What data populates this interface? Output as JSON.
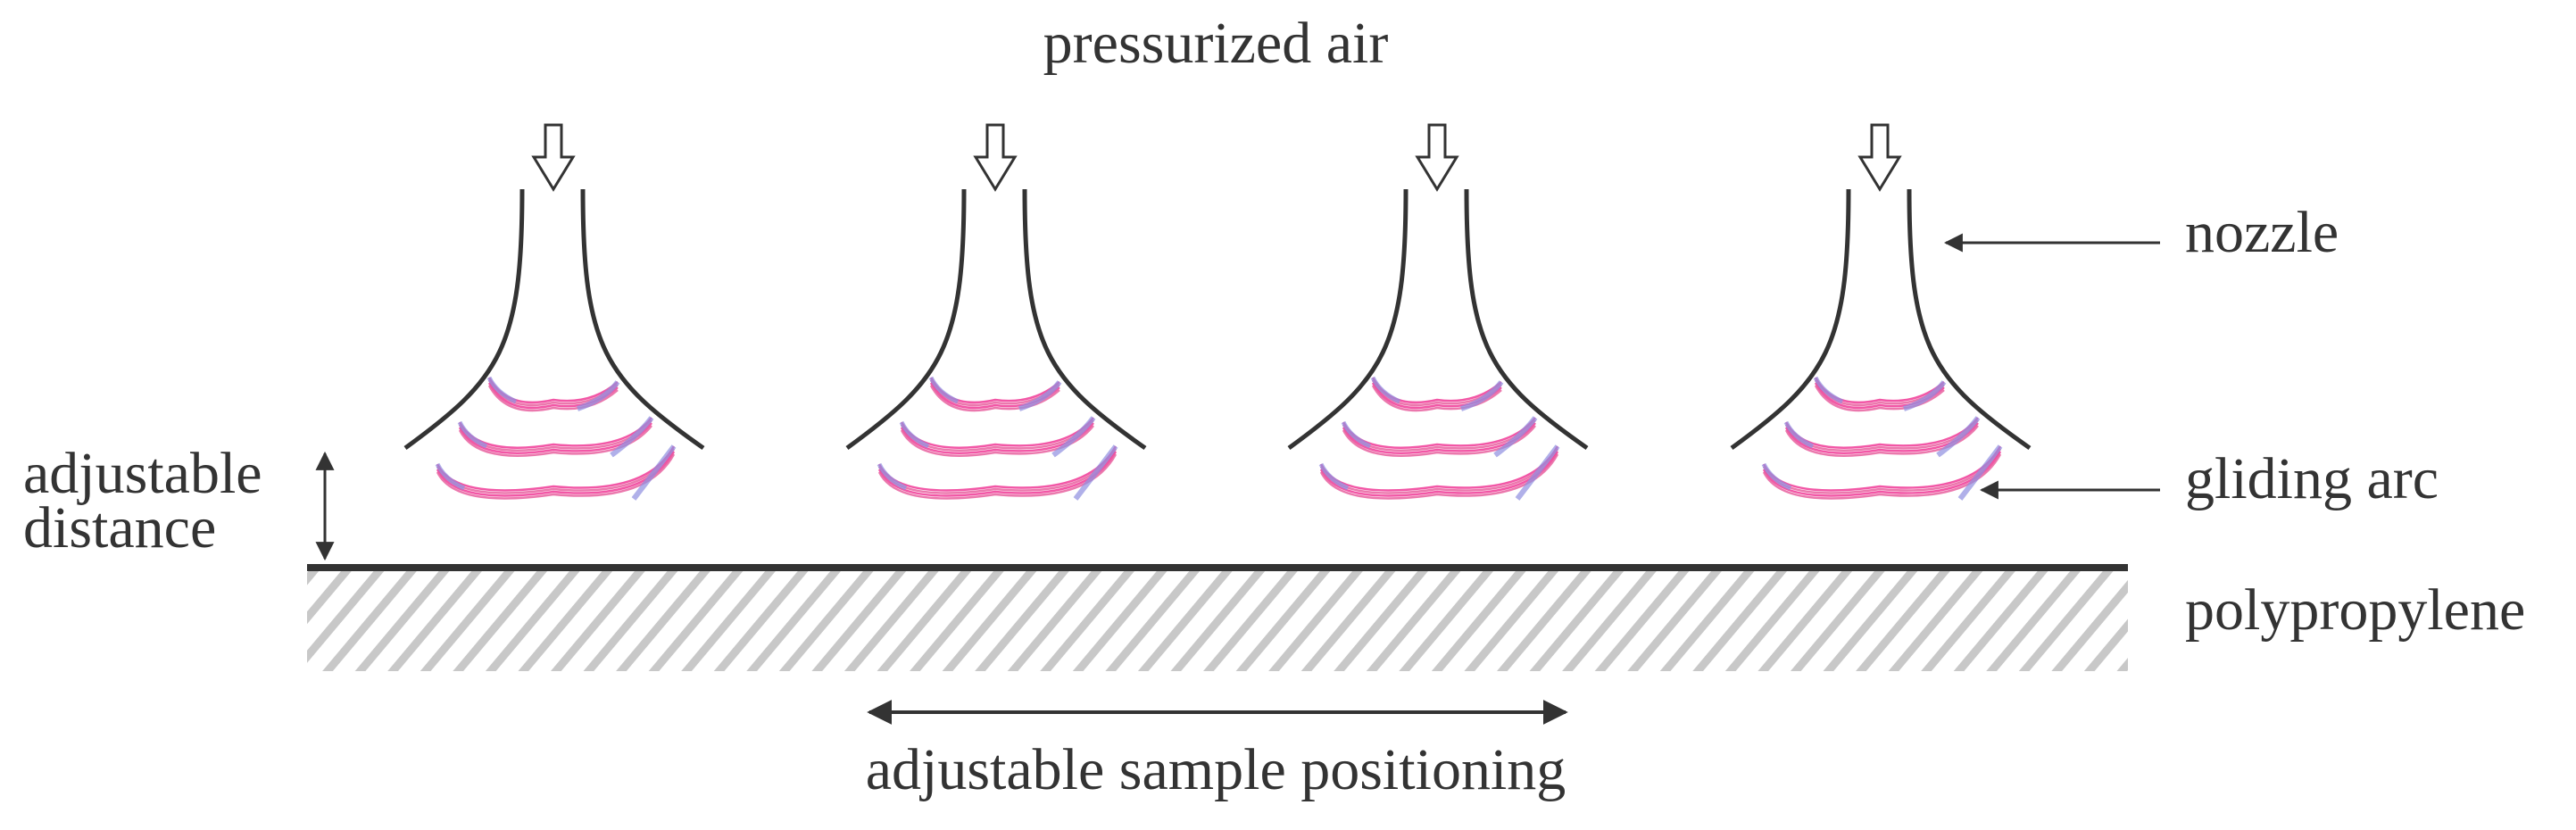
{
  "labels": {
    "top": "pressurized air",
    "nozzle": "nozzle",
    "gliding_arc": "gliding arc",
    "distance": [
      "adjustable",
      "distance"
    ],
    "material": "polypropylene",
    "positioning": "adjustable sample positioning"
  }
}
